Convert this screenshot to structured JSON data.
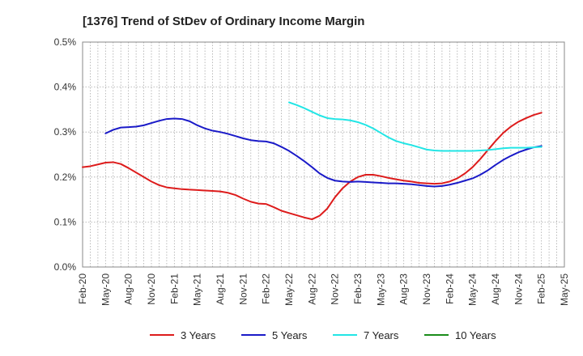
{
  "chart_data": {
    "type": "line",
    "title": "[1376]  Trend of StDev of Ordinary Income Margin",
    "xlabel": "",
    "ylabel": "",
    "x_ticks": [
      "Feb-20",
      "May-20",
      "Aug-20",
      "Nov-20",
      "Feb-21",
      "May-21",
      "Aug-21",
      "Nov-21",
      "Feb-22",
      "May-22",
      "Aug-22",
      "Nov-22",
      "Feb-23",
      "May-23",
      "Aug-23",
      "Nov-23",
      "Feb-24",
      "May-24",
      "Aug-24",
      "Nov-24",
      "Feb-25",
      "May-25"
    ],
    "y_ticks": [
      "0.0%",
      "0.1%",
      "0.2%",
      "0.3%",
      "0.4%",
      "0.5%"
    ],
    "ylim": [
      0,
      0.5
    ],
    "y_unit": "%",
    "grid": true,
    "legend_position": "bottom",
    "series": [
      {
        "name": "3 Years",
        "color": "#dd1c1c",
        "points": [
          [
            "Feb-20",
            0.222
          ],
          [
            "Mar-20",
            0.224
          ],
          [
            "Apr-20",
            0.228
          ],
          [
            "May-20",
            0.232
          ],
          [
            "Jun-20",
            0.233
          ],
          [
            "Jul-20",
            0.229
          ],
          [
            "Aug-20",
            0.22
          ],
          [
            "Sep-20",
            0.21
          ],
          [
            "Oct-20",
            0.2
          ],
          [
            "Nov-20",
            0.19
          ],
          [
            "Dec-20",
            0.182
          ],
          [
            "Jan-21",
            0.177
          ],
          [
            "Feb-21",
            0.175
          ],
          [
            "Mar-21",
            0.173
          ],
          [
            "Apr-21",
            0.172
          ],
          [
            "May-21",
            0.171
          ],
          [
            "Jun-21",
            0.17
          ],
          [
            "Jul-21",
            0.169
          ],
          [
            "Aug-21",
            0.168
          ],
          [
            "Sep-21",
            0.165
          ],
          [
            "Oct-21",
            0.16
          ],
          [
            "Nov-21",
            0.152
          ],
          [
            "Dec-21",
            0.145
          ],
          [
            "Jan-22",
            0.141
          ],
          [
            "Feb-22",
            0.14
          ],
          [
            "Mar-22",
            0.133
          ],
          [
            "Apr-22",
            0.125
          ],
          [
            "May-22",
            0.12
          ],
          [
            "Jun-22",
            0.115
          ],
          [
            "Jul-22",
            0.11
          ],
          [
            "Aug-22",
            0.106
          ],
          [
            "Sep-22",
            0.114
          ],
          [
            "Oct-22",
            0.13
          ],
          [
            "Nov-22",
            0.155
          ],
          [
            "Dec-22",
            0.175
          ],
          [
            "Jan-23",
            0.19
          ],
          [
            "Feb-23",
            0.2
          ],
          [
            "Mar-23",
            0.205
          ],
          [
            "Apr-23",
            0.205
          ],
          [
            "May-23",
            0.202
          ],
          [
            "Jun-23",
            0.198
          ],
          [
            "Jul-23",
            0.195
          ],
          [
            "Aug-23",
            0.192
          ],
          [
            "Sep-23",
            0.19
          ],
          [
            "Oct-23",
            0.187
          ],
          [
            "Nov-23",
            0.186
          ],
          [
            "Dec-23",
            0.185
          ],
          [
            "Jan-24",
            0.186
          ],
          [
            "Feb-24",
            0.19
          ],
          [
            "Mar-24",
            0.197
          ],
          [
            "Apr-24",
            0.208
          ],
          [
            "May-24",
            0.222
          ],
          [
            "Jun-24",
            0.24
          ],
          [
            "Jul-24",
            0.26
          ],
          [
            "Aug-24",
            0.28
          ],
          [
            "Sep-24",
            0.298
          ],
          [
            "Oct-24",
            0.312
          ],
          [
            "Nov-24",
            0.323
          ],
          [
            "Dec-24",
            0.331
          ],
          [
            "Jan-25",
            0.338
          ],
          [
            "Feb-25",
            0.343
          ]
        ]
      },
      {
        "name": "5 Years",
        "color": "#1a1ac8",
        "points": [
          [
            "May-20",
            0.297
          ],
          [
            "Jun-20",
            0.305
          ],
          [
            "Jul-20",
            0.31
          ],
          [
            "Aug-20",
            0.311
          ],
          [
            "Sep-20",
            0.312
          ],
          [
            "Oct-20",
            0.315
          ],
          [
            "Nov-20",
            0.32
          ],
          [
            "Dec-20",
            0.325
          ],
          [
            "Jan-21",
            0.329
          ],
          [
            "Feb-21",
            0.33
          ],
          [
            "Mar-21",
            0.329
          ],
          [
            "Apr-21",
            0.324
          ],
          [
            "May-21",
            0.315
          ],
          [
            "Jun-21",
            0.308
          ],
          [
            "Jul-21",
            0.303
          ],
          [
            "Aug-21",
            0.3
          ],
          [
            "Sep-21",
            0.296
          ],
          [
            "Oct-21",
            0.291
          ],
          [
            "Nov-21",
            0.286
          ],
          [
            "Dec-21",
            0.282
          ],
          [
            "Jan-22",
            0.28
          ],
          [
            "Feb-22",
            0.279
          ],
          [
            "Mar-22",
            0.275
          ],
          [
            "Apr-22",
            0.267
          ],
          [
            "May-22",
            0.258
          ],
          [
            "Jun-22",
            0.247
          ],
          [
            "Jul-22",
            0.235
          ],
          [
            "Aug-22",
            0.222
          ],
          [
            "Sep-22",
            0.208
          ],
          [
            "Oct-22",
            0.198
          ],
          [
            "Nov-22",
            0.192
          ],
          [
            "Dec-22",
            0.19
          ],
          [
            "Jan-23",
            0.189
          ],
          [
            "Feb-23",
            0.19
          ],
          [
            "Mar-23",
            0.189
          ],
          [
            "Apr-23",
            0.188
          ],
          [
            "May-23",
            0.187
          ],
          [
            "Jun-23",
            0.186
          ],
          [
            "Jul-23",
            0.186
          ],
          [
            "Aug-23",
            0.185
          ],
          [
            "Sep-23",
            0.184
          ],
          [
            "Oct-23",
            0.182
          ],
          [
            "Nov-23",
            0.18
          ],
          [
            "Dec-23",
            0.179
          ],
          [
            "Jan-24",
            0.18
          ],
          [
            "Feb-24",
            0.183
          ],
          [
            "Mar-24",
            0.187
          ],
          [
            "Apr-24",
            0.192
          ],
          [
            "May-24",
            0.197
          ],
          [
            "Jun-24",
            0.205
          ],
          [
            "Jul-24",
            0.215
          ],
          [
            "Aug-24",
            0.227
          ],
          [
            "Sep-24",
            0.238
          ],
          [
            "Oct-24",
            0.247
          ],
          [
            "Nov-24",
            0.255
          ],
          [
            "Dec-24",
            0.261
          ],
          [
            "Jan-25",
            0.266
          ],
          [
            "Feb-25",
            0.269
          ]
        ]
      },
      {
        "name": "7 Years",
        "color": "#22e5e5",
        "points": [
          [
            "May-22",
            0.366
          ],
          [
            "Jun-22",
            0.36
          ],
          [
            "Jul-22",
            0.353
          ],
          [
            "Aug-22",
            0.345
          ],
          [
            "Sep-22",
            0.337
          ],
          [
            "Oct-22",
            0.331
          ],
          [
            "Nov-22",
            0.329
          ],
          [
            "Dec-22",
            0.328
          ],
          [
            "Jan-23",
            0.326
          ],
          [
            "Feb-23",
            0.322
          ],
          [
            "Mar-23",
            0.316
          ],
          [
            "Apr-23",
            0.308
          ],
          [
            "May-23",
            0.298
          ],
          [
            "Jun-23",
            0.288
          ],
          [
            "Jul-23",
            0.28
          ],
          [
            "Aug-23",
            0.275
          ],
          [
            "Sep-23",
            0.271
          ],
          [
            "Oct-23",
            0.266
          ],
          [
            "Nov-23",
            0.261
          ],
          [
            "Dec-23",
            0.259
          ],
          [
            "Jan-24",
            0.258
          ],
          [
            "Feb-24",
            0.258
          ],
          [
            "Mar-24",
            0.258
          ],
          [
            "Apr-24",
            0.258
          ],
          [
            "May-24",
            0.258
          ],
          [
            "Jun-24",
            0.259
          ],
          [
            "Jul-24",
            0.26
          ],
          [
            "Aug-24",
            0.262
          ],
          [
            "Sep-24",
            0.264
          ],
          [
            "Oct-24",
            0.265
          ],
          [
            "Nov-24",
            0.265
          ],
          [
            "Dec-24",
            0.265
          ],
          [
            "Jan-25",
            0.266
          ],
          [
            "Feb-25",
            0.267
          ]
        ]
      },
      {
        "name": "10 Years",
        "color": "#1a8c1a",
        "points": []
      }
    ]
  }
}
